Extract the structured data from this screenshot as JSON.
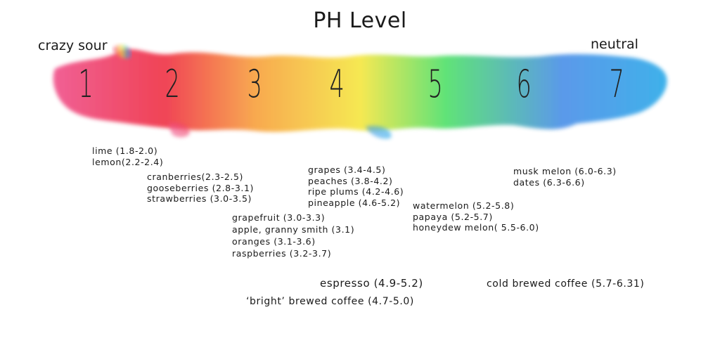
{
  "title": "PH Level",
  "left_label": "crazy sour",
  "right_label": "neutral",
  "scale_numbers": [
    "1",
    "2",
    "3",
    "4",
    "5",
    "6",
    "7"
  ],
  "colors": {
    "ph1": "#f0508a",
    "ph2": "#ef2f44",
    "ph3": "#f8a13e",
    "ph4": "#f6e640",
    "ph5": "#4fe06a",
    "ph6": "#4a8fe8",
    "ph7": "#2aa9e8"
  },
  "groups": {
    "citrus_low": [
      "lime (1.8-2.0)",
      "lemon(2.2-2.4)"
    ],
    "berries": [
      "cranberries(2.3-2.5)",
      "gooseberries (2.8-3.1)",
      "strawberries (3.0-3.5)"
    ],
    "citrus_mid": [
      "grapefruit (3.0-3.3)",
      "apple, granny smith (3.1)",
      "oranges (3.1-3.6)",
      "raspberries (3.2-3.7)"
    ],
    "stone": [
      "grapes (3.4-4.5)",
      "peaches (3.8-4.2)",
      "ripe plums (4.2-4.6)",
      "pineapple (4.6-5.2)"
    ],
    "melons": [
      "watermelon (5.2-5.8)",
      "papaya (5.2-5.7)",
      "honeydew melon( 5.5-6.0)"
    ],
    "neutralish": [
      "musk melon (6.0-6.3)",
      "dates (6.3-6.6)"
    ]
  },
  "coffee": {
    "espresso": "espresso (4.9-5.2)",
    "bright": "‘bright’ brewed coffee (4.7-5.0)",
    "cold": "cold brewed coffee (5.7-6.31)"
  }
}
